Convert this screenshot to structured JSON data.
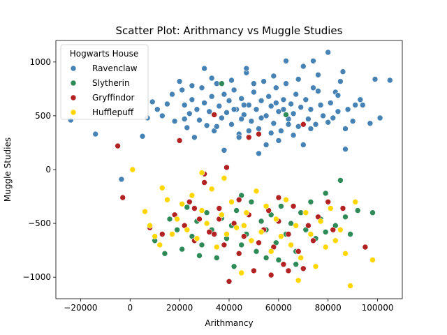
{
  "chart_data": {
    "type": "scatter",
    "title": "Scatter Plot: Arithmancy vs Muggle Studies",
    "xlabel": "Arithmancy",
    "ylabel": "Muggle Studies",
    "xlim": [
      -30000,
      110000
    ],
    "ylim": [
      -1200,
      1200
    ],
    "xticks": [
      -20000,
      0,
      20000,
      40000,
      60000,
      80000,
      100000
    ],
    "yticks": [
      -1000,
      -500,
      0,
      500,
      1000
    ],
    "grid": false,
    "legend": {
      "title": "Hogwarts House",
      "placement": "top-left"
    },
    "series": [
      {
        "name": "Ravenclaw",
        "color": "#4682b4",
        "points": [
          [
            -24000,
            460
          ],
          [
            -14000,
            330
          ],
          [
            -3500,
            -90
          ],
          [
            5000,
            310
          ],
          [
            7000,
            480
          ],
          [
            9000,
            630
          ],
          [
            11000,
            560
          ],
          [
            13000,
            500
          ],
          [
            15000,
            610
          ],
          [
            17000,
            700
          ],
          [
            18000,
            450
          ],
          [
            20000,
            820
          ],
          [
            21000,
            740
          ],
          [
            22000,
            600
          ],
          [
            23000,
            390
          ],
          [
            24000,
            520
          ],
          [
            25000,
            650
          ],
          [
            26000,
            300
          ],
          [
            27000,
            560
          ],
          [
            28000,
            460
          ],
          [
            29000,
            760
          ],
          [
            30000,
            620
          ],
          [
            31000,
            410
          ],
          [
            32000,
            540
          ],
          [
            33000,
            680
          ],
          [
            34000,
            360
          ],
          [
            35000,
            800
          ],
          [
            36000,
            590
          ],
          [
            37000,
            480
          ],
          [
            38000,
            700
          ],
          [
            39000,
            530
          ],
          [
            40000,
            640
          ],
          [
            41000,
            420
          ],
          [
            42000,
            740
          ],
          [
            43000,
            560
          ],
          [
            44000,
            330
          ],
          [
            45000,
            660
          ],
          [
            46000,
            510
          ],
          [
            47000,
            900
          ],
          [
            48000,
            600
          ],
          [
            49000,
            450
          ],
          [
            50000,
            720
          ],
          [
            51000,
            560
          ],
          [
            52000,
            380
          ],
          [
            53000,
            640
          ],
          [
            54000,
            820
          ],
          [
            55000,
            500
          ],
          [
            56000,
            680
          ],
          [
            57000,
            590
          ],
          [
            58000,
            430
          ],
          [
            59000,
            760
          ],
          [
            60000,
            540
          ],
          [
            61000,
            360
          ],
          [
            62000,
            650
          ],
          [
            63000,
            800
          ],
          [
            64000,
            470
          ],
          [
            65000,
            610
          ],
          [
            66000,
            520
          ],
          [
            67000,
            700
          ],
          [
            68000,
            400
          ],
          [
            69000,
            580
          ],
          [
            70000,
            960
          ],
          [
            71000,
            650
          ],
          [
            72000,
            470
          ],
          [
            73000,
            560
          ],
          [
            74000,
            760
          ],
          [
            75000,
            420
          ],
          [
            76000,
            880
          ],
          [
            77000,
            600
          ],
          [
            78000,
            500
          ],
          [
            80000,
            1090
          ],
          [
            81000,
            620
          ],
          [
            82000,
            480
          ],
          [
            83000,
            720
          ],
          [
            84000,
            540
          ],
          [
            85000,
            820
          ],
          [
            86000,
            910
          ],
          [
            87000,
            380
          ],
          [
            88000,
            560
          ],
          [
            90000,
            450
          ],
          [
            91000,
            600
          ],
          [
            93000,
            650
          ],
          [
            94000,
            600
          ],
          [
            97000,
            430
          ],
          [
            99000,
            840
          ],
          [
            101000,
            480
          ],
          [
            105000,
            830
          ],
          [
            74000,
            1010
          ],
          [
            63000,
            1010
          ],
          [
            47000,
            940
          ],
          [
            30000,
            940
          ],
          [
            44000,
            300
          ],
          [
            55000,
            230
          ],
          [
            60000,
            270
          ],
          [
            70000,
            230
          ],
          [
            87000,
            190
          ],
          [
            38000,
            180
          ],
          [
            52000,
            150
          ],
          [
            66000,
            320
          ],
          [
            25000,
            780
          ],
          [
            33000,
            850
          ],
          [
            41000,
            830
          ],
          [
            50000,
            800
          ],
          [
            58000,
            870
          ],
          [
            68000,
            840
          ],
          [
            76000,
            730
          ],
          [
            84000,
            690
          ],
          [
            22000,
            470
          ],
          [
            35000,
            400
          ],
          [
            48000,
            360
          ],
          [
            57000,
            340
          ],
          [
            64000,
            420
          ],
          [
            73000,
            380
          ],
          [
            80000,
            440
          ],
          [
            42000,
            560
          ],
          [
            46000,
            600
          ],
          [
            53000,
            480
          ],
          [
            59000,
            620
          ],
          [
            62000,
            560
          ],
          [
            45000,
            470
          ]
        ]
      },
      {
        "name": "Slytherin",
        "color": "#2e8b57",
        "points": [
          [
            10000,
            -660
          ],
          [
            14000,
            -780
          ],
          [
            16000,
            -460
          ],
          [
            19000,
            -560
          ],
          [
            21000,
            -740
          ],
          [
            23000,
            -350
          ],
          [
            25000,
            -620
          ],
          [
            27000,
            -480
          ],
          [
            29000,
            -700
          ],
          [
            31000,
            -400
          ],
          [
            33000,
            -560
          ],
          [
            35000,
            -820
          ],
          [
            37000,
            -450
          ],
          [
            39000,
            -640
          ],
          [
            41000,
            -520
          ],
          [
            43000,
            -380
          ],
          [
            45000,
            -700
          ],
          [
            47000,
            -600
          ],
          [
            49000,
            -300
          ],
          [
            51000,
            -760
          ],
          [
            53000,
            -480
          ],
          [
            55000,
            -560
          ],
          [
            57000,
            -420
          ],
          [
            59000,
            -680
          ],
          [
            61000,
            -340
          ],
          [
            63000,
            -600
          ],
          [
            65000,
            -500
          ],
          [
            67000,
            -760
          ],
          [
            69000,
            -400
          ],
          [
            71000,
            -560
          ],
          [
            73000,
            -300
          ],
          [
            75000,
            -640
          ],
          [
            77000,
            -460
          ],
          [
            79000,
            -580
          ],
          [
            81000,
            -360
          ],
          [
            83000,
            -520
          ],
          [
            85000,
            -100
          ],
          [
            87000,
            -440
          ],
          [
            89000,
            -600
          ],
          [
            92000,
            -380
          ],
          [
            98000,
            -400
          ],
          [
            37000,
            800
          ],
          [
            63000,
            510
          ],
          [
            79000,
            -220
          ],
          [
            45000,
            -240
          ],
          [
            55000,
            -820
          ],
          [
            67000,
            -880
          ],
          [
            28000,
            -800
          ],
          [
            42000,
            -900
          ],
          [
            60000,
            -840
          ]
        ]
      },
      {
        "name": "Gryffindor",
        "color": "#b22222",
        "points": [
          [
            -5000,
            220
          ],
          [
            -3000,
            -260
          ],
          [
            8000,
            -540
          ],
          [
            13000,
            -600
          ],
          [
            18000,
            -420
          ],
          [
            20000,
            270
          ],
          [
            22000,
            -520
          ],
          [
            24000,
            -300
          ],
          [
            26000,
            -660
          ],
          [
            28000,
            -460
          ],
          [
            30000,
            -120
          ],
          [
            32000,
            -580
          ],
          [
            34000,
            510
          ],
          [
            36000,
            -360
          ],
          [
            38000,
            -700
          ],
          [
            39000,
            20
          ],
          [
            40000,
            -1040
          ],
          [
            42000,
            -500
          ],
          [
            44000,
            -280
          ],
          [
            46000,
            -620
          ],
          [
            48000,
            -420
          ],
          [
            50000,
            -940
          ],
          [
            52000,
            330
          ],
          [
            54000,
            -560
          ],
          [
            56000,
            -380
          ],
          [
            58000,
            -720
          ],
          [
            60000,
            -480
          ],
          [
            62000,
            -880
          ],
          [
            64000,
            -600
          ],
          [
            66000,
            -340
          ],
          [
            68000,
            -760
          ],
          [
            70000,
            420
          ],
          [
            72000,
            -520
          ],
          [
            74000,
            -660
          ],
          [
            76000,
            -440
          ],
          [
            80000,
            -300
          ],
          [
            82000,
            -560
          ],
          [
            86000,
            -360
          ],
          [
            95000,
            -720
          ],
          [
            30000,
            -40
          ],
          [
            48000,
            300
          ],
          [
            57000,
            -980
          ],
          [
            64000,
            -940
          ],
          [
            70000,
            -920
          ],
          [
            34000,
            -600
          ],
          [
            44000,
            -780
          ],
          [
            52000,
            -680
          ],
          [
            60000,
            -260
          ],
          [
            36000,
            -460
          ],
          [
            26000,
            -360
          ]
        ]
      },
      {
        "name": "Hufflepuff",
        "color": "#ffd700",
        "points": [
          [
            1000,
            0
          ],
          [
            6000,
            -390
          ],
          [
            8000,
            -520
          ],
          [
            10000,
            -620
          ],
          [
            12000,
            -700
          ],
          [
            13000,
            -170
          ],
          [
            15000,
            -280
          ],
          [
            17000,
            -600
          ],
          [
            19000,
            -460
          ],
          [
            21000,
            -320
          ],
          [
            23000,
            -560
          ],
          [
            25000,
            -240
          ],
          [
            27000,
            -640
          ],
          [
            29000,
            -380
          ],
          [
            31000,
            -500
          ],
          [
            33000,
            -180
          ],
          [
            35000,
            -720
          ],
          [
            37000,
            -420
          ],
          [
            39000,
            -600
          ],
          [
            41000,
            -300
          ],
          [
            43000,
            -540
          ],
          [
            45000,
            -960
          ],
          [
            47000,
            -400
          ],
          [
            49000,
            -660
          ],
          [
            51000,
            -200
          ],
          [
            53000,
            -580
          ],
          [
            55000,
            -340
          ],
          [
            57000,
            -760
          ],
          [
            59000,
            -460
          ],
          [
            61000,
            -620
          ],
          [
            63000,
            -280
          ],
          [
            65000,
            -700
          ],
          [
            67000,
            -520
          ],
          [
            69000,
            -820
          ],
          [
            71000,
            -400
          ],
          [
            73000,
            -600
          ],
          [
            75000,
            -900
          ],
          [
            77000,
            -480
          ],
          [
            79000,
            -720
          ],
          [
            81000,
            -360
          ],
          [
            83000,
            -660
          ],
          [
            85000,
            -560
          ],
          [
            87000,
            -780
          ],
          [
            89000,
            -1080
          ],
          [
            91000,
            -300
          ],
          [
            98000,
            -840
          ],
          [
            68000,
            -1030
          ],
          [
            38000,
            -80
          ],
          [
            29000,
            -30
          ],
          [
            46000,
            -520
          ]
        ]
      }
    ]
  }
}
